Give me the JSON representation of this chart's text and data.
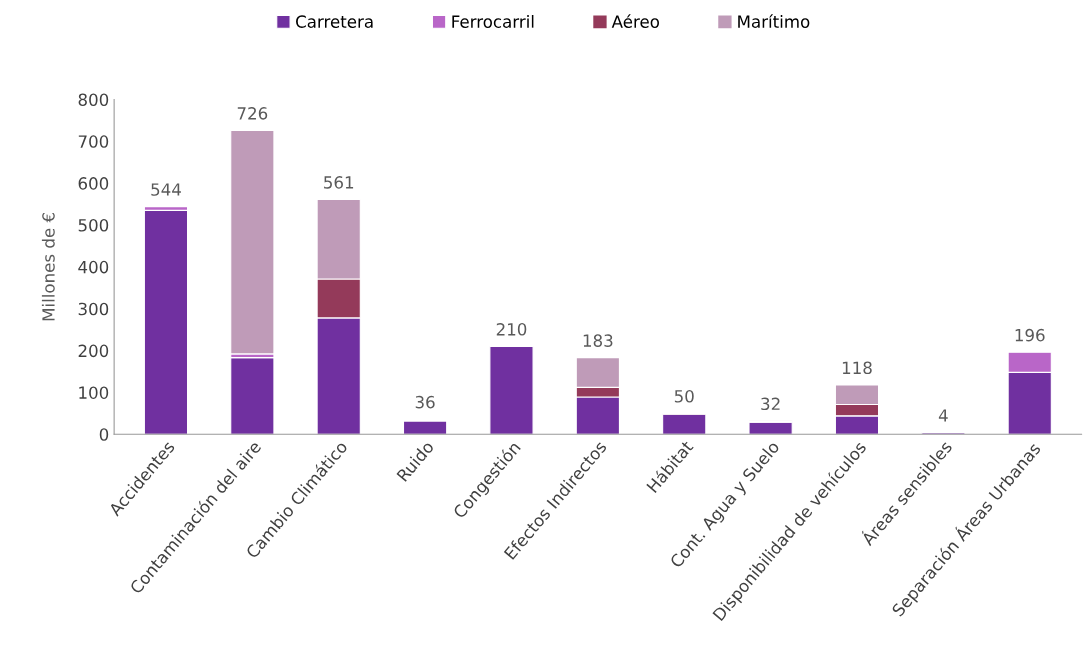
{
  "chart_data": {
    "type": "bar",
    "stacked": true,
    "ylabel": "Millones de €",
    "categories": [
      "Accidentes",
      "Contaminación del aire",
      "Cambio Climático",
      "Ruido",
      "Congestión",
      "Efectos Indirectos",
      "Hábitat",
      "Cont. Agua y Suelo",
      "Disponibilidad de vehículos",
      "Áreas sensibles",
      "Separación Áreas Urbanas"
    ],
    "series": [
      {
        "name": "Carretera",
        "color": "#7030a0",
        "values": [
          535,
          183,
          278,
          32,
          210,
          89,
          48,
          29,
          44,
          4,
          148
        ]
      },
      {
        "name": "Ferrocarril",
        "color": "#b966c8",
        "values": [
          9,
          9,
          0,
          3,
          0,
          null,
          null,
          1,
          0,
          0,
          48
        ]
      },
      {
        "name": "Aéreo",
        "color": "#943a5a",
        "values": [
          0,
          null,
          93,
          1,
          0,
          23,
          2,
          0,
          27,
          0,
          0
        ]
      },
      {
        "name": "Marítimo",
        "color": "#bf9bb8",
        "values": [
          0,
          534,
          190,
          0,
          0,
          71,
          null,
          2,
          47,
          0,
          0
        ]
      }
    ],
    "totals": [
      "544",
      "726",
      "561",
      "36",
      "210",
      "183",
      "50",
      "32",
      "118",
      "4",
      "196"
    ],
    "ylim": [
      0,
      800
    ],
    "yticks": [
      0,
      100,
      200,
      300,
      400,
      500,
      600,
      700,
      800
    ],
    "grid": false,
    "legend": "top"
  }
}
